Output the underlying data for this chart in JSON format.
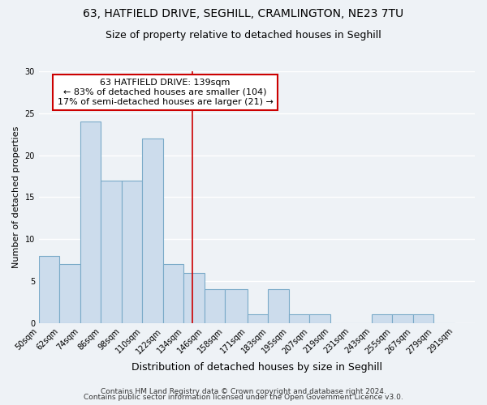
{
  "title": "63, HATFIELD DRIVE, SEGHILL, CRAMLINGTON, NE23 7TU",
  "subtitle": "Size of property relative to detached houses in Seghill",
  "xlabel": "Distribution of detached houses by size in Seghill",
  "ylabel": "Number of detached properties",
  "bar_color": "#ccdcec",
  "bar_edge_color": "#7aaac8",
  "bin_labels": [
    "50sqm",
    "62sqm",
    "74sqm",
    "86sqm",
    "98sqm",
    "110sqm",
    "122sqm",
    "134sqm",
    "146sqm",
    "158sqm",
    "171sqm",
    "183sqm",
    "195sqm",
    "207sqm",
    "219sqm",
    "231sqm",
    "243sqm",
    "255sqm",
    "267sqm",
    "279sqm",
    "291sqm"
  ],
  "bin_edges": [
    50,
    62,
    74,
    86,
    98,
    110,
    122,
    134,
    146,
    158,
    171,
    183,
    195,
    207,
    219,
    231,
    243,
    255,
    267,
    279,
    291
  ],
  "bar_heights": [
    8,
    7,
    24,
    17,
    17,
    22,
    7,
    6,
    4,
    4,
    1,
    4,
    1,
    1,
    0,
    0,
    1,
    1,
    1,
    0
  ],
  "red_line_x": 139,
  "ylim": [
    0,
    30
  ],
  "yticks": [
    0,
    5,
    10,
    15,
    20,
    25,
    30
  ],
  "annotation_title": "63 HATFIELD DRIVE: 139sqm",
  "annotation_line1": "← 83% of detached houses are smaller (104)",
  "annotation_line2": "17% of semi-detached houses are larger (21) →",
  "annotation_box_color": "#ffffff",
  "annotation_box_edge_color": "#cc0000",
  "footnote1": "Contains HM Land Registry data © Crown copyright and database right 2024.",
  "footnote2": "Contains public sector information licensed under the Open Government Licence v3.0.",
  "background_color": "#eef2f6",
  "grid_color": "#ffffff",
  "title_fontsize": 10,
  "subtitle_fontsize": 9,
  "xlabel_fontsize": 9,
  "ylabel_fontsize": 8,
  "tick_fontsize": 7,
  "annotation_fontsize": 8,
  "footnote_fontsize": 6.5
}
